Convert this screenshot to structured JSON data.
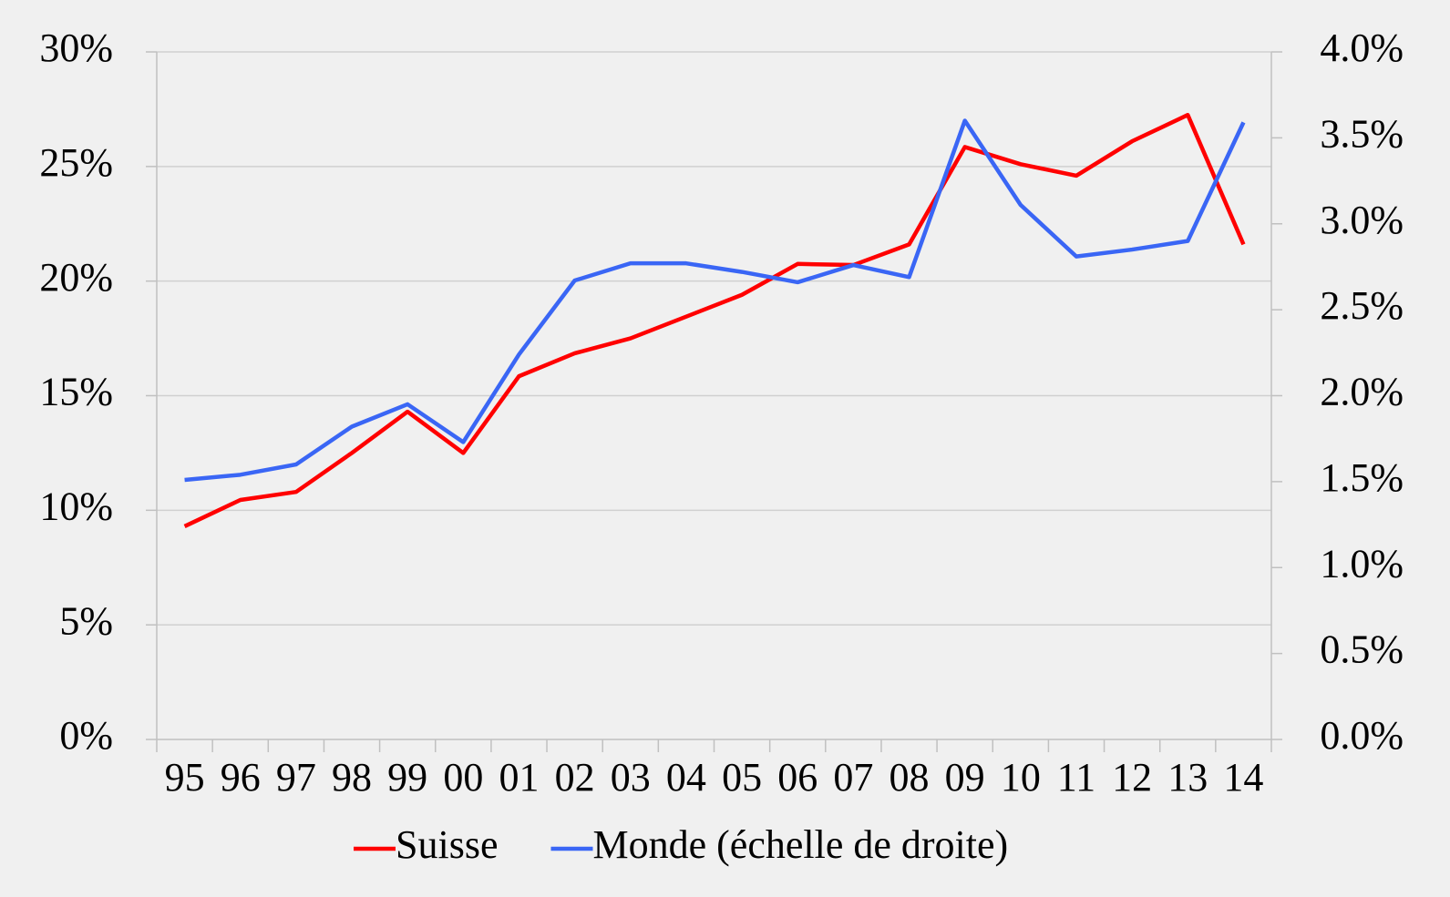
{
  "chart_data": {
    "type": "line",
    "categories": [
      "95",
      "96",
      "97",
      "98",
      "99",
      "00",
      "01",
      "02",
      "03",
      "04",
      "05",
      "06",
      "07",
      "08",
      "09",
      "10",
      "11",
      "12",
      "13",
      "14"
    ],
    "series": [
      {
        "name": "Suisse",
        "color": "#ff0000",
        "values": [
          9.3,
          10.45,
          10.8,
          12.5,
          14.3,
          12.5,
          15.85,
          16.85,
          17.5,
          18.45,
          19.4,
          20.75,
          20.7,
          21.6,
          25.85,
          25.1,
          24.6,
          26.1,
          27.25,
          21.6
        ]
      },
      {
        "name": "Monde (échelle de droite)",
        "color": "#3a66f5",
        "axis": "y2",
        "values": [
          1.51,
          1.54,
          1.6,
          1.82,
          1.95,
          1.73,
          2.24,
          2.67,
          2.77,
          2.77,
          2.72,
          2.66,
          2.76,
          2.69,
          3.6,
          3.11,
          2.81,
          2.85,
          2.9,
          3.59
        ]
      }
    ],
    "ylim": [
      0,
      30
    ],
    "yticks": [
      {
        "value": 0,
        "label": "0%"
      },
      {
        "value": 5,
        "label": "5%"
      },
      {
        "value": 10,
        "label": "10%"
      },
      {
        "value": 15,
        "label": "15%"
      },
      {
        "value": 20,
        "label": "20%"
      },
      {
        "value": 25,
        "label": "25%"
      },
      {
        "value": 30,
        "label": "30%"
      }
    ],
    "y2lim": [
      0,
      4
    ],
    "y2ticks": [
      {
        "value": 0,
        "label": "0.0%"
      },
      {
        "value": 0.5,
        "label": "0.5%"
      },
      {
        "value": 1,
        "label": "1.0%"
      },
      {
        "value": 1.5,
        "label": "1.5%"
      },
      {
        "value": 2,
        "label": "2.0%"
      },
      {
        "value": 2.5,
        "label": "2.5%"
      },
      {
        "value": 3,
        "label": "3.0%"
      },
      {
        "value": 3.5,
        "label": "3.5%"
      },
      {
        "value": 4,
        "label": "4.0%"
      }
    ],
    "grid": true,
    "legend": "bottom"
  }
}
